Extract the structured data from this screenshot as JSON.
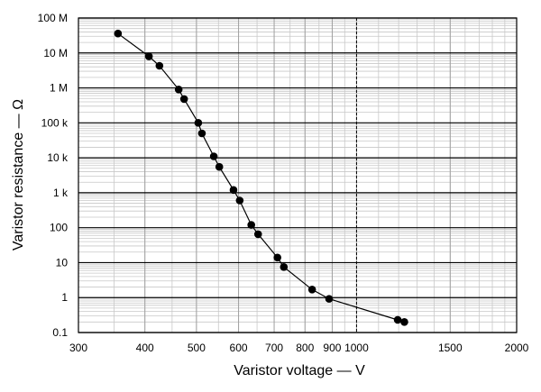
{
  "chart_data": {
    "type": "scatter",
    "title": "",
    "xlabel": "Varistor voltage — V",
    "ylabel": "Varistor resistance — Ω",
    "x_scale": "log",
    "y_scale": "log",
    "xlim": [
      300,
      2000
    ],
    "ylim": [
      0.1,
      100000000
    ],
    "x_ticks": [
      {
        "value": 300,
        "label": "300"
      },
      {
        "value": 400,
        "label": "400"
      },
      {
        "value": 500,
        "label": "500"
      },
      {
        "value": 600,
        "label": "600"
      },
      {
        "value": 700,
        "label": "700"
      },
      {
        "value": 800,
        "label": "800"
      },
      {
        "value": 900,
        "label": "900"
      },
      {
        "value": 1000,
        "label": "1000"
      },
      {
        "value": 1500,
        "label": "1500"
      },
      {
        "value": 2000,
        "label": "2000"
      }
    ],
    "y_ticks": [
      {
        "value": 0.1,
        "label": "0.1"
      },
      {
        "value": 1,
        "label": "1"
      },
      {
        "value": 10,
        "label": "10"
      },
      {
        "value": 100,
        "label": "100"
      },
      {
        "value": 1000,
        "label": "1 k"
      },
      {
        "value": 10000,
        "label": "10 k"
      },
      {
        "value": 100000,
        "label": "100 k"
      },
      {
        "value": 1000000,
        "label": "1 M"
      },
      {
        "value": 10000000,
        "label": "10 M"
      },
      {
        "value": 100000000,
        "label": "100 M"
      }
    ],
    "dashed_reference_x": 1000,
    "grid": true,
    "series": [
      {
        "name": "",
        "color": "#000000",
        "connected": true,
        "points": [
          {
            "x": 356,
            "y": 36000000
          },
          {
            "x": 407,
            "y": 8000000
          },
          {
            "x": 426,
            "y": 4300000
          },
          {
            "x": 463,
            "y": 900000
          },
          {
            "x": 474,
            "y": 480000
          },
          {
            "x": 504,
            "y": 100000
          },
          {
            "x": 512,
            "y": 50000
          },
          {
            "x": 539,
            "y": 11000
          },
          {
            "x": 552,
            "y": 5500
          },
          {
            "x": 587,
            "y": 1200
          },
          {
            "x": 603,
            "y": 600
          },
          {
            "x": 634,
            "y": 120
          },
          {
            "x": 653,
            "y": 65
          },
          {
            "x": 710,
            "y": 14
          },
          {
            "x": 730,
            "y": 7.5
          },
          {
            "x": 825,
            "y": 1.7
          },
          {
            "x": 888,
            "y": 0.92
          },
          {
            "x": 1195,
            "y": 0.23
          },
          {
            "x": 1230,
            "y": 0.2
          }
        ]
      }
    ]
  }
}
